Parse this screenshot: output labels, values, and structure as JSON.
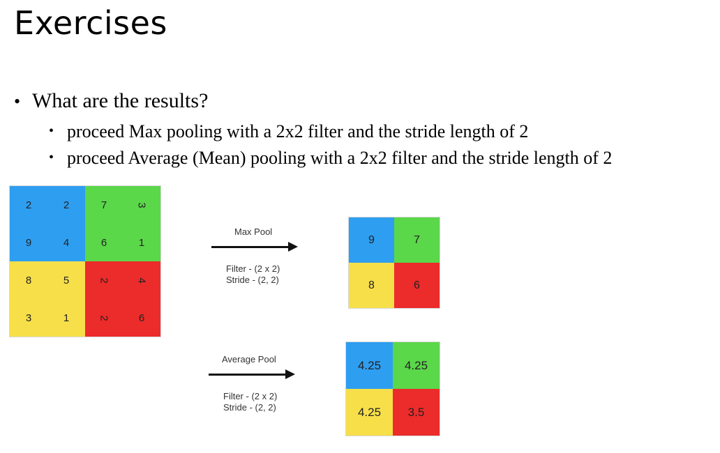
{
  "title": "Exercises",
  "question": "What are the results?",
  "bullet_glyph": "•",
  "tasks": [
    "proceed Max pooling with a 2x2 filter and the stride length of 2",
    "proceed Average (Mean) pooling with a 2x2 filter and the stride length of 2"
  ],
  "input_grid": {
    "values": [
      [
        "2",
        "2",
        "7",
        "3"
      ],
      [
        "9",
        "4",
        "6",
        "1"
      ],
      [
        "8",
        "5",
        "2",
        "4"
      ],
      [
        "3",
        "1",
        "2",
        "6"
      ]
    ],
    "colors": {
      "top_left": "#2e9ef1",
      "top_right": "#5bd74a",
      "bottom_left": "#f7df4a",
      "bottom_right": "#ec2b2b"
    }
  },
  "max_pool": {
    "label": "Max Pool",
    "filter": "Filter - (2 x 2)",
    "stride": "Stride - (2, 2)",
    "values": [
      [
        "9",
        "7"
      ],
      [
        "8",
        "6"
      ]
    ]
  },
  "average_pool": {
    "label": "Average Pool",
    "filter": "Filter - (2 x 2)",
    "stride": "Stride - (2, 2)",
    "values": [
      [
        "4.25",
        "4.25"
      ],
      [
        "4.25",
        "3.5"
      ]
    ]
  }
}
